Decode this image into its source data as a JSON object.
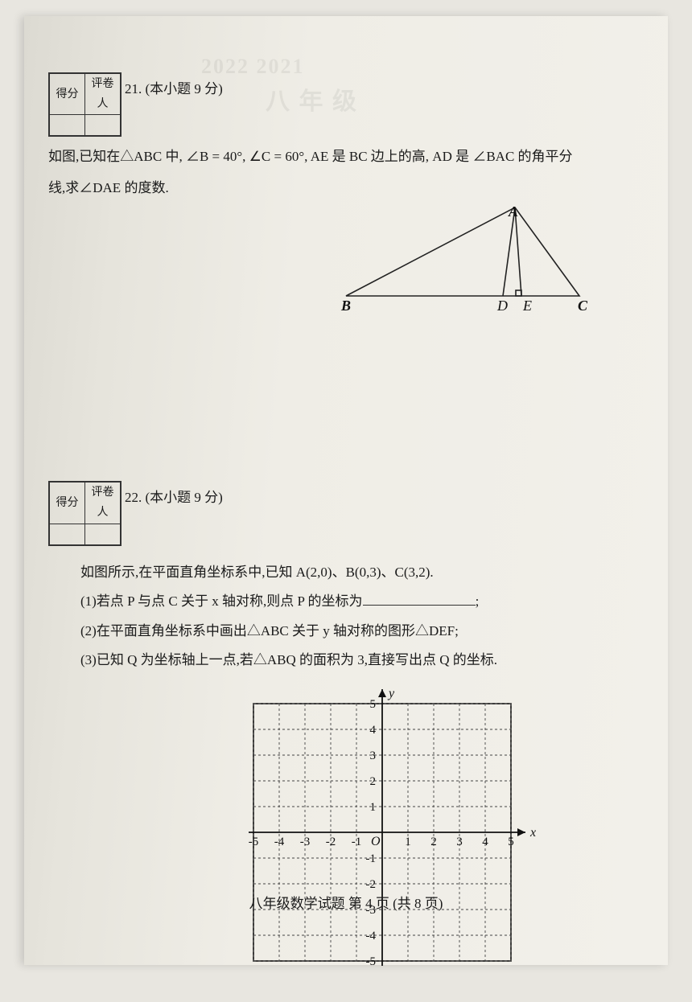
{
  "scorebox": {
    "left_hdr": "得分",
    "right_hdr": "评卷人"
  },
  "q21": {
    "num_label": "21. (本小题 9 分)",
    "text1": "如图,已知在△ABC 中, ∠B = 40°, ∠C = 60°, AE 是 BC 边上的高, AD 是 ∠BAC 的角平分",
    "text2": "线,求∠DAE 的度数.",
    "figure": {
      "A": "A",
      "B": "B",
      "C": "C",
      "D": "D",
      "E": "E",
      "pts": {
        "B": [
          10,
          120
        ],
        "C": [
          300,
          120
        ],
        "A": [
          220,
          10
        ],
        "D": [
          205,
          120
        ],
        "E": [
          228,
          120
        ]
      },
      "stroke": "#222",
      "stroke_width": 1.6
    }
  },
  "q22": {
    "num_label": "22. (本小题 9 分)",
    "intro": "如图所示,在平面直角坐标系中,已知 A(2,0)、B(0,3)、C(3,2).",
    "part1_pre": "(1)若点 P 与点 C 关于 x 轴对称,则点 P 的坐标为",
    "part1_post": ";",
    "part2": "(2)在平面直角坐标系中画出△ABC 关于 y 轴对称的图形△DEF;",
    "part3": "(3)已知 Q 为坐标轴上一点,若△ABQ 的面积为 3,直接写出点 Q 的坐标.",
    "grid": {
      "xmin": -5,
      "xmax": 5,
      "ymin": -5,
      "ymax": 5,
      "cell": 32,
      "x_label": "x",
      "y_label": "y",
      "origin": "O",
      "tick_labels_x": [
        "-5",
        "-4",
        "-3",
        "-2",
        "-1",
        "1",
        "2",
        "3",
        "4",
        "5"
      ],
      "tick_labels_y_pos": [
        "1",
        "2",
        "3",
        "4",
        "5"
      ],
      "tick_labels_y_neg": [
        "-1",
        "-2",
        "-3",
        "-4",
        "-5"
      ],
      "grid_color": "#444",
      "grid_dash": "3,3",
      "axis_color": "#111"
    }
  },
  "footer": "八年级数学试题  第 4 页  (共 8 页)"
}
